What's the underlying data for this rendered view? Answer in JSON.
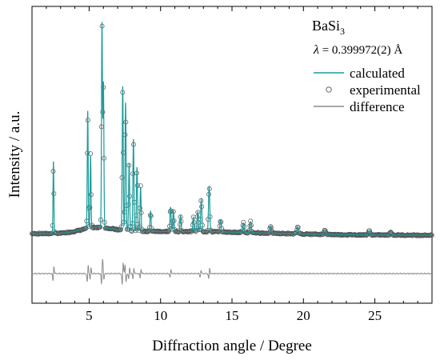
{
  "chart_data": {
    "type": "line",
    "title": "BaSi",
    "title_subscript": "3",
    "annotation": {
      "symbol": "λ",
      "text": " = 0.399972(2) Å"
    },
    "xlabel": "Diffraction angle / Degree",
    "ylabel": "Intensity / a.u.",
    "xlim": [
      1,
      29
    ],
    "x_ticks": [
      5,
      10,
      15,
      20,
      25
    ],
    "legend_position": "top-right",
    "colors": {
      "calculated": "#1b9a9a",
      "experimental": "#555555",
      "difference": "#8c8c8c"
    },
    "series": [
      {
        "name": "calculated",
        "style": "line",
        "peaks": [
          [
            2.5,
            90
          ],
          [
            4.9,
            147
          ],
          [
            5.1,
            90
          ],
          [
            5.9,
            255
          ],
          [
            6.0,
            180
          ],
          [
            7.35,
            180
          ],
          [
            7.55,
            160
          ],
          [
            7.8,
            85
          ],
          [
            8.1,
            115
          ],
          [
            8.35,
            80
          ],
          [
            8.6,
            55
          ],
          [
            9.3,
            25
          ],
          [
            10.7,
            30
          ],
          [
            10.9,
            26
          ],
          [
            11.4,
            20
          ],
          [
            12.3,
            18
          ],
          [
            12.6,
            25
          ],
          [
            12.85,
            40
          ],
          [
            13.4,
            57
          ],
          [
            14.2,
            15
          ],
          [
            15.8,
            12
          ],
          [
            16.3,
            14
          ],
          [
            17.7,
            9
          ],
          [
            19.6,
            9
          ],
          [
            21.5,
            6
          ],
          [
            24.6,
            5
          ],
          [
            26.1,
            4
          ]
        ]
      },
      {
        "name": "experimental",
        "style": "marker"
      },
      {
        "name": "difference",
        "style": "line",
        "spikes": [
          [
            2.5,
            20
          ],
          [
            4.9,
            25
          ],
          [
            5.1,
            15
          ],
          [
            5.9,
            30
          ],
          [
            6.0,
            -18
          ],
          [
            7.35,
            32
          ],
          [
            7.55,
            -25
          ],
          [
            7.8,
            15
          ],
          [
            8.1,
            15
          ],
          [
            8.6,
            12
          ],
          [
            10.7,
            10
          ],
          [
            12.8,
            10
          ],
          [
            13.4,
            14
          ]
        ]
      }
    ]
  }
}
